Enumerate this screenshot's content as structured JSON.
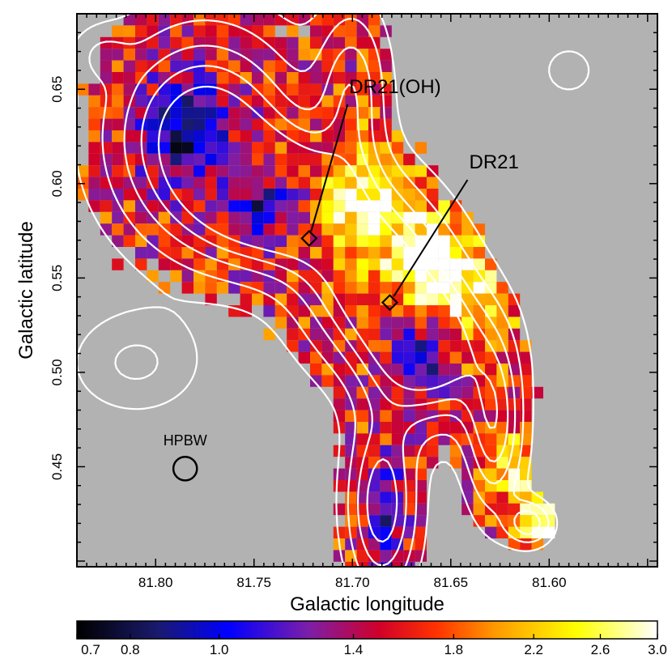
{
  "chart_data": {
    "type": "heatmap",
    "title": "",
    "xlabel": "Galactic longitude",
    "ylabel": "Galactic latitude",
    "xlim": [
      81.84,
      81.545
    ],
    "ylim": [
      0.397,
      0.69
    ],
    "x_ticks": [
      {
        "value": 81.8,
        "label": "81.80"
      },
      {
        "value": 81.75,
        "label": "81.75"
      },
      {
        "value": 81.7,
        "label": "81.70"
      },
      {
        "value": 81.65,
        "label": "81.65"
      },
      {
        "value": 81.6,
        "label": "81.60"
      }
    ],
    "y_ticks": [
      {
        "value": 0.45,
        "label": "0.45"
      },
      {
        "value": 0.5,
        "label": "0.50"
      },
      {
        "value": 0.55,
        "label": "0.55"
      },
      {
        "value": 0.6,
        "label": "0.60"
      },
      {
        "value": 0.65,
        "label": "0.65"
      }
    ],
    "background_color": "#b2b2b2",
    "contour_color": "#ffffff",
    "annotations": [
      {
        "label": "DR21(OH)",
        "l": 81.722,
        "b": 0.571,
        "text_l": 81.7,
        "text_b": 0.648
      },
      {
        "label": "DR21",
        "l": 81.681,
        "b": 0.537,
        "text_l": 81.639,
        "text_b": 0.608
      }
    ],
    "beam": {
      "label": "HPBW",
      "l": 81.785,
      "b": 0.449,
      "diameter_deg": 0.012
    },
    "colorbar": {
      "min": 0.7,
      "max": 3.0,
      "scale": "log",
      "ticks": [
        {
          "value": 0.7,
          "label": "0.7"
        },
        {
          "value": 0.8,
          "label": "0.8"
        },
        {
          "value": 1.0,
          "label": "1.0"
        },
        {
          "value": 1.4,
          "label": "1.4"
        },
        {
          "value": 1.8,
          "label": "1.8"
        },
        {
          "value": 2.2,
          "label": "2.2"
        },
        {
          "value": 2.6,
          "label": "2.6"
        },
        {
          "value": 3.0,
          "label": "3.0"
        }
      ],
      "colormap": [
        {
          "f": 0.0,
          "color": "#000000"
        },
        {
          "f": 0.14,
          "color": "#1a1a6e"
        },
        {
          "f": 0.26,
          "color": "#0000ff"
        },
        {
          "f": 0.4,
          "color": "#7d1ea8"
        },
        {
          "f": 0.52,
          "color": "#d0002a"
        },
        {
          "f": 0.62,
          "color": "#ff3300"
        },
        {
          "f": 0.72,
          "color": "#ff9900"
        },
        {
          "f": 0.86,
          "color": "#ffff00"
        },
        {
          "f": 1.0,
          "color": "#ffffff"
        }
      ]
    },
    "emission_components": [
      {
        "l": 81.775,
        "b": 0.625,
        "sl": 0.032,
        "sb": 0.038,
        "amp": 1.0
      },
      {
        "l": 81.733,
        "b": 0.59,
        "sl": 0.03,
        "sb": 0.024,
        "amp": 1.0
      },
      {
        "l": 81.688,
        "b": 0.548,
        "sl": 0.026,
        "sb": 0.03,
        "amp": 0.95
      },
      {
        "l": 81.66,
        "b": 0.51,
        "sl": 0.022,
        "sb": 0.026,
        "amp": 0.9
      },
      {
        "l": 81.628,
        "b": 0.47,
        "sl": 0.01,
        "sb": 0.03,
        "amp": 0.7
      },
      {
        "l": 81.685,
        "b": 0.43,
        "sl": 0.012,
        "sb": 0.032,
        "amp": 0.75
      },
      {
        "l": 81.61,
        "b": 0.42,
        "sl": 0.008,
        "sb": 0.008,
        "amp": 0.55
      },
      {
        "l": 81.7,
        "b": 0.65,
        "sl": 0.012,
        "sb": 0.03,
        "amp": 0.55
      }
    ],
    "ratio_components": [
      {
        "l": 81.785,
        "b": 0.628,
        "sl": 0.015,
        "sb": 0.018,
        "amp": -1.1
      },
      {
        "l": 81.745,
        "b": 0.588,
        "sl": 0.014,
        "sb": 0.011,
        "amp": -0.8
      },
      {
        "l": 81.662,
        "b": 0.508,
        "sl": 0.01,
        "sb": 0.014,
        "amp": -0.95
      },
      {
        "l": 81.683,
        "b": 0.425,
        "sl": 0.008,
        "sb": 0.018,
        "amp": -0.7
      },
      {
        "l": 81.69,
        "b": 0.59,
        "sl": 0.018,
        "sb": 0.025,
        "amp": 1.0
      },
      {
        "l": 81.655,
        "b": 0.555,
        "sl": 0.015,
        "sb": 0.018,
        "amp": 1.1
      },
      {
        "l": 81.635,
        "b": 0.53,
        "sl": 0.015,
        "sb": 0.02,
        "amp": 0.5
      },
      {
        "l": 81.603,
        "b": 0.42,
        "sl": 0.01,
        "sb": 0.01,
        "amp": 0.8
      },
      {
        "l": 81.615,
        "b": 0.448,
        "sl": 0.01,
        "sb": 0.015,
        "amp": 0.7
      }
    ],
    "contour_components": [
      {
        "l": 81.81,
        "b": 0.505,
        "sl": 0.022,
        "sb": 0.018,
        "amp": 0.3
      },
      {
        "l": 81.59,
        "b": 0.66,
        "sl": 0.01,
        "sb": 0.01,
        "amp": 0.2
      },
      {
        "l": 81.828,
        "b": 0.668,
        "sl": 0.01,
        "sb": 0.01,
        "amp": 0.2
      }
    ],
    "contour_levels": [
      0.12,
      0.27,
      0.45,
      0.62,
      0.8
    ]
  }
}
